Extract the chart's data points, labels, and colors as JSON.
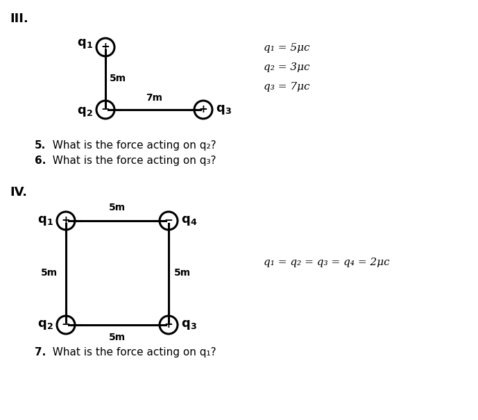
{
  "bg_color": "#ffffff",
  "fig_width": 6.89,
  "fig_height": 6.05,
  "dpi": 100,
  "section_III": "III.",
  "section_IV": "IV.",
  "q_values_III_lines": [
    "q₁ = 5μc",
    "q₂ = 3μc",
    "q₃ = 7μc"
  ],
  "q_values_IV": "q₁ = q₂ = q₃ = q₄ = 2μc",
  "q5_num": "5.",
  "q5_text": "  What is the force acting on q₂?",
  "q6_num": "6.",
  "q6_text": "  What is the force acting on q₃?",
  "q7_num": "7.",
  "q7_text": "  What is the force acting on q₁?",
  "circle_r": 0.13,
  "lw": 2.2,
  "tick_size": 0.1
}
